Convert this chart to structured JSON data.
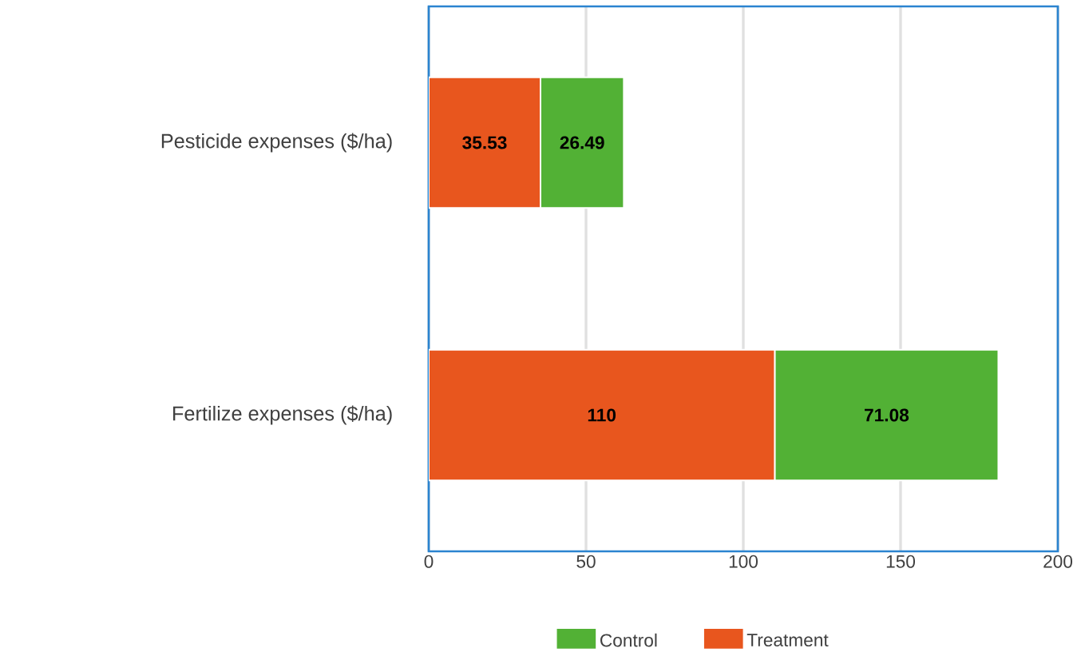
{
  "chart_data": {
    "type": "bar",
    "orientation": "horizontal",
    "stacked": true,
    "categories": [
      "Pesticide expenses ($/ha)",
      "Fertilize expenses ($/ha)"
    ],
    "series": [
      {
        "name": "Treatment",
        "color": "#e8561e",
        "values": [
          35.53,
          110
        ]
      },
      {
        "name": "Control",
        "color": "#52b135",
        "values": [
          26.49,
          71.08
        ]
      }
    ],
    "xlim": [
      0,
      200
    ],
    "xticks": [
      0,
      50,
      100,
      150,
      200
    ],
    "grid": "x",
    "legend": "bottom",
    "data_labels": true
  }
}
